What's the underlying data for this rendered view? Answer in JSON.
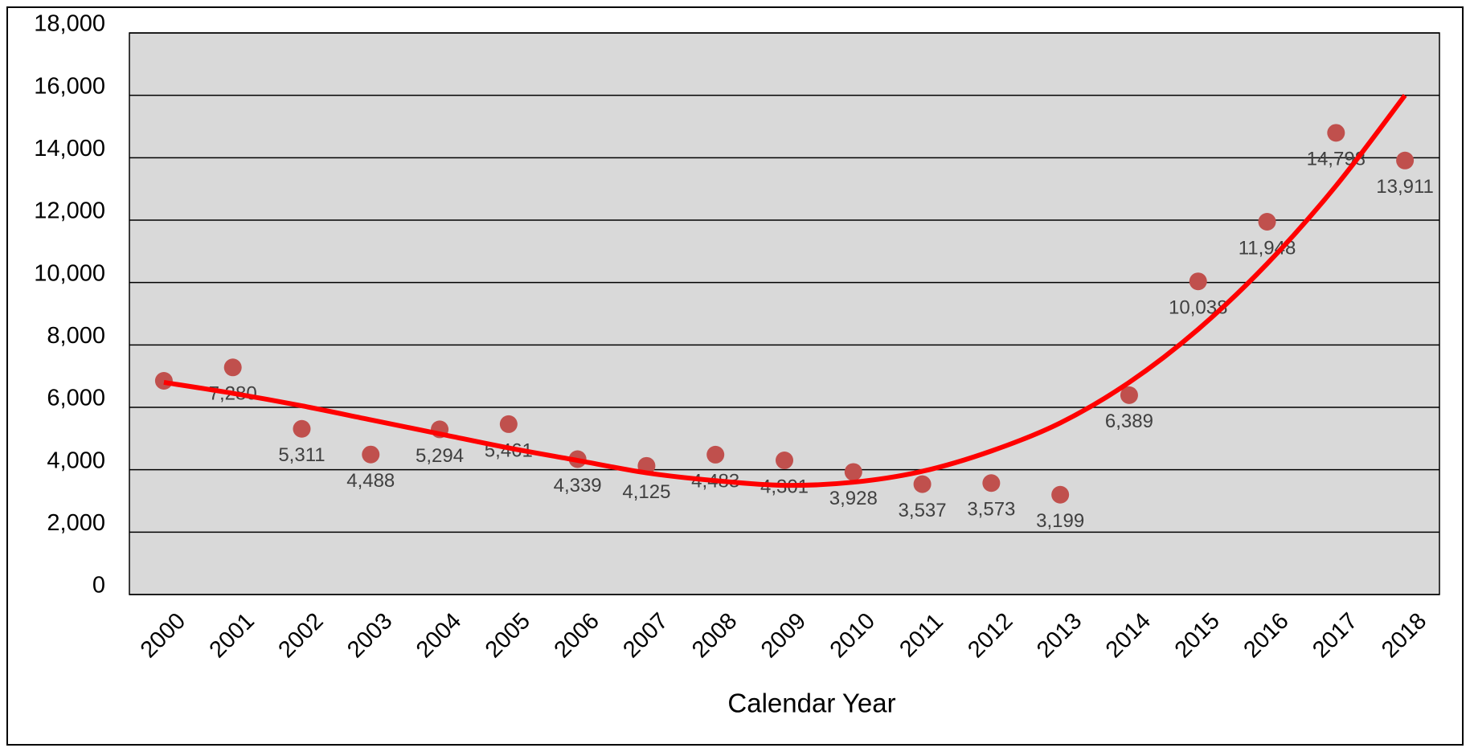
{
  "chart_data": {
    "type": "scatter",
    "x_label": "Calendar Year",
    "categories": [
      "2000",
      "2001",
      "2002",
      "2003",
      "2004",
      "2005",
      "2006",
      "2007",
      "2008",
      "2009",
      "2010",
      "2011",
      "2012",
      "2013",
      "2014",
      "2015",
      "2016",
      "2017",
      "2018"
    ],
    "values": [
      6850,
      7280,
      5311,
      4488,
      5294,
      5461,
      4339,
      4125,
      4483,
      4301,
      3928,
      3537,
      3573,
      3199,
      6389,
      10038,
      11948,
      14798,
      13911
    ],
    "value_labels": [
      null,
      "7,280",
      "5,311",
      "4,488",
      "5,294",
      "5,461",
      "4,339",
      "4,125",
      "4,483",
      "4,301",
      "3,928",
      "3,537",
      "3,573",
      "3,199",
      "6,389",
      "10,038",
      "11,948",
      "14,798",
      "13,911"
    ],
    "color": "#c0504d",
    "trend": {
      "color": "#ff0000",
      "values": [
        6800,
        6450,
        6050,
        5600,
        5150,
        4700,
        4300,
        3900,
        3650,
        3500,
        3600,
        3950,
        4600,
        5500,
        6800,
        8500,
        10600,
        13100,
        16000
      ]
    },
    "ylim": [
      0,
      18000
    ],
    "yticks": [
      0,
      {
        "value": 2000,
        "label": "2,000"
      },
      {
        "value": 4000,
        "label": "4,000"
      },
      {
        "value": 6000,
        "label": "6,000"
      },
      {
        "value": 8000,
        "label": "8,000"
      },
      {
        "value": 10000,
        "label": "10,000"
      },
      {
        "value": 12000,
        "label": "12,000"
      },
      {
        "value": 14000,
        "label": "14,000"
      },
      {
        "value": 16000,
        "label": "16,000"
      },
      {
        "value": 18000,
        "label": "18,000"
      }
    ],
    "grid": true
  }
}
